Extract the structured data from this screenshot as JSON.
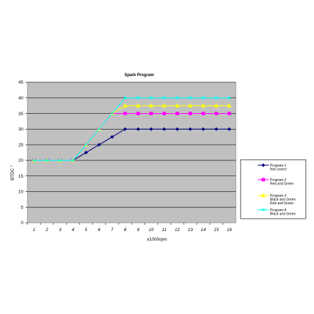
{
  "chart_data": {
    "type": "line",
    "title": "Spark Program",
    "xlabel": "x1000rpm",
    "ylabel": "BTDC °",
    "categories": [
      "1",
      "2",
      "3",
      "4",
      "5",
      "6",
      "7",
      "8",
      "9",
      "10",
      "11",
      "12",
      "13",
      "14",
      "15",
      "16"
    ],
    "ylim": [
      0,
      45
    ],
    "yticks": [
      0,
      5,
      10,
      15,
      20,
      25,
      30,
      35,
      40,
      45
    ],
    "grid": true,
    "legend_placement": "right",
    "series": [
      {
        "name": "Program-1",
        "sublabel": [
          "Not conect"
        ],
        "color": "#000080",
        "marker": "diamond",
        "values": [
          20,
          20,
          20,
          20,
          22.5,
          25,
          27.5,
          30,
          30,
          30,
          30,
          30,
          30,
          30,
          30,
          30
        ]
      },
      {
        "name": "Program-2",
        "sublabel": [
          "Red and Green"
        ],
        "color": "#ff00ff",
        "marker": "square",
        "values": [
          20,
          20,
          20,
          20,
          25,
          30,
          35,
          35,
          35,
          35,
          35,
          35,
          35,
          35,
          35,
          35
        ]
      },
      {
        "name": "Program-3",
        "sublabel": [
          "Black and Green",
          "Red and Green"
        ],
        "color": "#ffff00",
        "marker": "triangle",
        "values": [
          20,
          20,
          20,
          20,
          25,
          30,
          35,
          37.5,
          37.5,
          37.5,
          37.5,
          37.5,
          37.5,
          37.5,
          37.5,
          37.5
        ]
      },
      {
        "name": "Program-4",
        "sublabel": [
          "Black and Green"
        ],
        "color": "#00ffff",
        "marker": "x",
        "values": [
          20,
          20,
          20,
          20,
          25,
          30,
          35,
          40,
          40,
          40,
          40,
          40,
          40,
          40,
          40,
          40
        ]
      }
    ]
  },
  "colors": {
    "plot_background": "#c0c0c0",
    "gridline": "#000000"
  }
}
